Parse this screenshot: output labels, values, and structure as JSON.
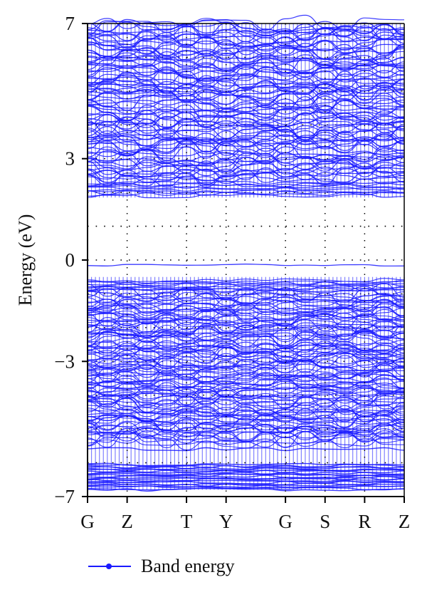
{
  "chart_data": {
    "type": "line",
    "title": "",
    "xlabel": "",
    "ylabel": "Energy (eV)",
    "ylim": [
      -7,
      7
    ],
    "y_ticks": [
      7,
      3,
      0,
      -3,
      -7
    ],
    "y_tick_labels": [
      "7",
      "3",
      "0",
      "−3",
      "−7"
    ],
    "k_points": [
      "G",
      "Z",
      "T",
      "Y",
      "G",
      "S",
      "R",
      "Z"
    ],
    "k_positions": [
      0,
      1,
      2.5,
      3.5,
      5,
      6,
      7,
      8
    ],
    "fermi_level": 0,
    "grid": "dotted",
    "conduction_band_range": [
      1.85,
      7
    ],
    "valence_band_range": [
      -6.8,
      -0.55
    ],
    "isolated_band_near": -0.15,
    "series": [
      {
        "name": "Band energy",
        "color": "#1a1aff"
      }
    ],
    "legend": {
      "position": "bottom-left",
      "label": "Band energy"
    }
  }
}
